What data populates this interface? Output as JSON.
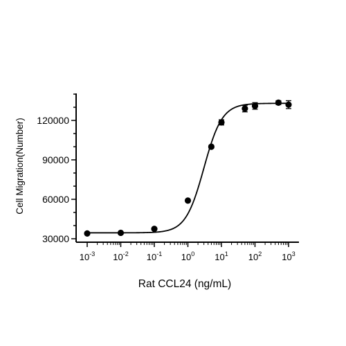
{
  "chart_data": {
    "type": "scatter",
    "title": "",
    "xlabel": "Rat CCL24 (ng/mL)",
    "ylabel": "Cell Migration(Number)",
    "x_scale": "log10",
    "xlim": [
      0.0005,
      1500
    ],
    "ylim": [
      30000,
      140000
    ],
    "x_tick_labels": [
      {
        "base": "10",
        "exp": "-3"
      },
      {
        "base": "10",
        "exp": "-2"
      },
      {
        "base": "10",
        "exp": "-1"
      },
      {
        "base": "10",
        "exp": "0"
      },
      {
        "base": "10",
        "exp": "1"
      },
      {
        "base": "10",
        "exp": "2"
      },
      {
        "base": "10",
        "exp": "3"
      }
    ],
    "y_tick_labels": [
      "30000",
      "60000",
      "90000",
      "120000"
    ],
    "series": [
      {
        "x": [
          0.001,
          0.01,
          0.1,
          1,
          5,
          10,
          50,
          100,
          500,
          1000
        ],
        "y": [
          34000,
          34500,
          37500,
          59000,
          100000,
          118500,
          129000,
          131000,
          133500,
          132000
        ],
        "error": [
          0,
          0,
          0,
          0,
          1000,
          2000,
          2500,
          2500,
          1500,
          3000
        ]
      }
    ],
    "fit_curve": {
      "type": "4PL",
      "bottom": 34500,
      "top": 133000,
      "ec50": 3,
      "hill": 1.6
    },
    "grid": false,
    "legend": "none"
  }
}
